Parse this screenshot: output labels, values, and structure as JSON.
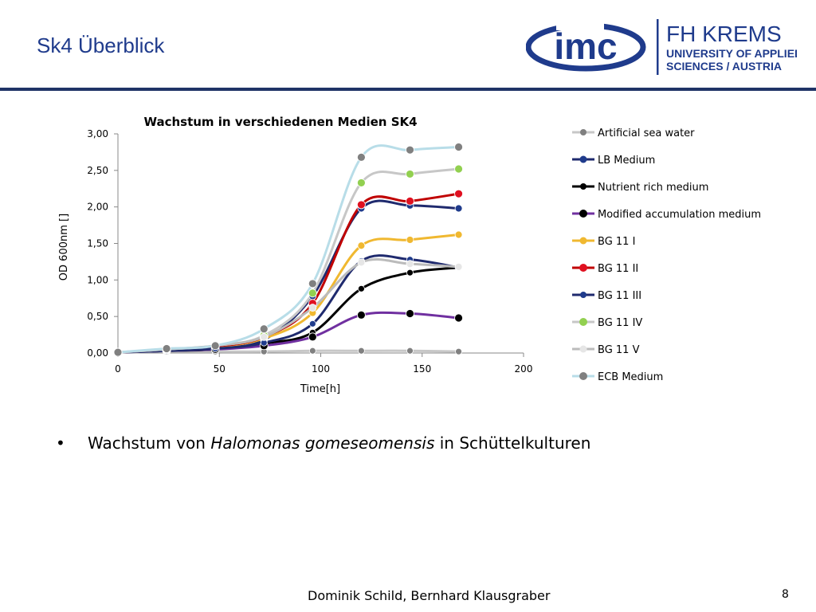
{
  "slide": {
    "title": "Sk4 Überblick",
    "bullet_prefix": "Wachstum von ",
    "bullet_italic": "Halomonas gomeseomensis",
    "bullet_suffix": " in Schüttelkulturen",
    "authors": "Dominik Schild, Bernhard Klausgraber",
    "page_number": "8"
  },
  "logo": {
    "imc_text": "imc",
    "line1": "FH KREMS",
    "line2": "UNIVERSITY OF APPLIED",
    "line3": "SCIENCES / AUSTRIA",
    "brand_color": "#1f3b8c"
  },
  "chart_data": {
    "type": "line",
    "title": "Wachstum in verschiedenen Medien SK4",
    "xlabel": "Time[h]",
    "ylabel": "OD 600nm []",
    "xlim": [
      0,
      200
    ],
    "ylim": [
      0,
      3
    ],
    "xticks": [
      "0",
      "50",
      "100",
      "150",
      "200"
    ],
    "yticks": [
      "0,00",
      "0,50",
      "1,00",
      "1,50",
      "2,00",
      "2,50",
      "3,00"
    ],
    "grid": false,
    "legend_position": "right",
    "x": [
      0,
      24,
      48,
      72,
      96,
      120,
      144,
      168
    ],
    "series": [
      {
        "name": "Artificial sea water",
        "line_color": "#c7c7c7",
        "marker_color": "#808080",
        "marker_size": 4,
        "values": [
          0.01,
          0.02,
          0.02,
          0.02,
          0.03,
          0.03,
          0.03,
          0.02
        ]
      },
      {
        "name": "LB Medium",
        "line_color": "#1f2a6e",
        "marker_color": "#1f3b8c",
        "marker_size": 4.5,
        "values": [
          0.01,
          0.03,
          0.07,
          0.18,
          0.78,
          1.98,
          2.02,
          1.98
        ]
      },
      {
        "name": "Nutrient rich medium",
        "line_color": "#000000",
        "marker_color": "#000000",
        "marker_size": 4,
        "values": [
          0.01,
          0.03,
          0.05,
          0.13,
          0.28,
          0.88,
          1.1,
          1.17
        ]
      },
      {
        "name": "Modified accumulation medium",
        "line_color": "#7030a0",
        "marker_color": "#000000",
        "marker_size": 5,
        "values": [
          0.01,
          0.03,
          0.05,
          0.1,
          0.22,
          0.52,
          0.54,
          0.48
        ]
      },
      {
        "name": "BG 11 I",
        "line_color": "#f0b830",
        "marker_color": "#f0b830",
        "marker_size": 4.5,
        "values": [
          0.01,
          0.04,
          0.08,
          0.2,
          0.55,
          1.47,
          1.55,
          1.62
        ]
      },
      {
        "name": "BG 11 II",
        "line_color": "#c00000",
        "marker_color": "#e01020",
        "marker_size": 5,
        "values": [
          0.01,
          0.04,
          0.09,
          0.22,
          0.68,
          2.03,
          2.08,
          2.18
        ]
      },
      {
        "name": "BG 11 III",
        "line_color": "#1f2a6e",
        "marker_color": "#1f3b8c",
        "marker_size": 4,
        "values": [
          0.01,
          0.03,
          0.06,
          0.14,
          0.4,
          1.26,
          1.28,
          1.17
        ]
      },
      {
        "name": "BG 11 IV",
        "line_color": "#c7c7c7",
        "marker_color": "#92d050",
        "marker_size": 5,
        "values": [
          0.01,
          0.05,
          0.1,
          0.24,
          0.82,
          2.33,
          2.45,
          2.52
        ]
      },
      {
        "name": "BG 11 V",
        "line_color": "#bbbbbb",
        "marker_color": "#e6e6e6",
        "marker_size": 4.5,
        "values": [
          0.01,
          0.05,
          0.1,
          0.22,
          0.62,
          1.24,
          1.22,
          1.18
        ]
      },
      {
        "name": "ECB Medium",
        "line_color": "#b8dde8",
        "marker_color": "#808080",
        "marker_size": 5,
        "values": [
          0.01,
          0.06,
          0.1,
          0.33,
          0.95,
          2.68,
          2.78,
          2.82
        ]
      }
    ]
  }
}
